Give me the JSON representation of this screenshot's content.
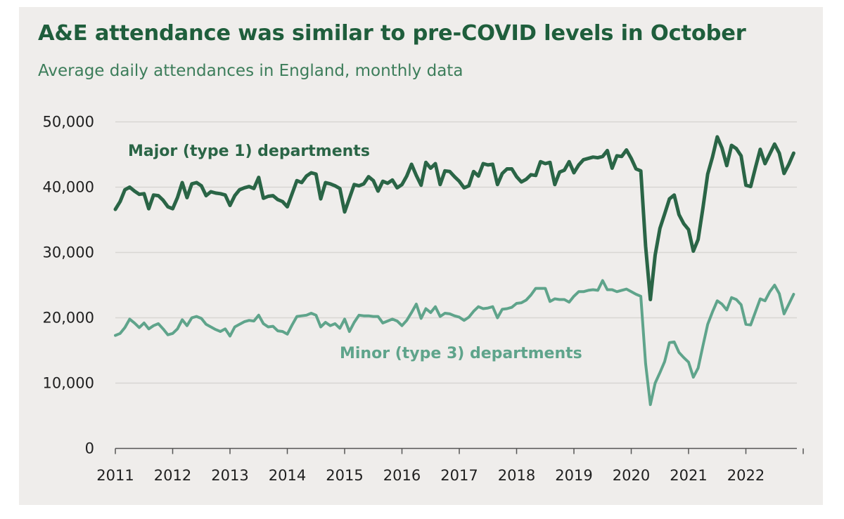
{
  "colors": {
    "background": "#efedeb",
    "title": "#1f5e3c",
    "subtitle": "#3c7d5a",
    "major": "#2a6546",
    "minor": "#5fa48b",
    "grid": "#d8d6d3",
    "axis": "#555555"
  },
  "chart_data": {
    "type": "line",
    "title": "A&E attendance was similar to pre-COVID levels in October",
    "subtitle": "Average daily attendances in England, monthly data",
    "xlabel": "",
    "ylabel": "",
    "ylim": [
      0,
      50000
    ],
    "yticks": [
      0,
      10000,
      20000,
      30000,
      40000,
      50000
    ],
    "ytick_labels": [
      "0",
      "10,000",
      "20,000",
      "30,000",
      "40,000",
      "50,000"
    ],
    "xtick_labels": [
      "2011",
      "2012",
      "2013",
      "2014",
      "2015",
      "2016",
      "2017",
      "2018",
      "2019",
      "2020",
      "2021",
      "2022"
    ],
    "x_start": "2011-01",
    "x_end": "2022-10",
    "grid": true,
    "series": [
      {
        "name": "Major (type 1) departments",
        "label": "Major (type 1) departments",
        "color": "#2a6546",
        "values": [
          36600,
          37800,
          39600,
          40000,
          39400,
          38900,
          39000,
          36700,
          38800,
          38700,
          38000,
          37000,
          36700,
          38400,
          40700,
          38400,
          40500,
          40700,
          40200,
          38700,
          39300,
          39100,
          39000,
          38800,
          37200,
          38700,
          39600,
          39900,
          40100,
          39800,
          41500,
          38300,
          38600,
          38700,
          38100,
          37800,
          37000,
          39000,
          41000,
          40700,
          41700,
          42200,
          42000,
          38200,
          40700,
          40500,
          40200,
          39800,
          36200,
          38300,
          40400,
          40200,
          40500,
          41600,
          41000,
          39400,
          40900,
          40600,
          41100,
          39900,
          40400,
          41700,
          43500,
          41800,
          40300,
          43800,
          42900,
          43600,
          40400,
          42500,
          42400,
          41600,
          40900,
          39900,
          40200,
          42400,
          41700,
          43600,
          43400,
          43500,
          40400,
          42100,
          42800,
          42800,
          41600,
          40800,
          41200,
          41900,
          41800,
          43900,
          43600,
          43800,
          40400,
          42300,
          42600,
          43900,
          42200,
          43400,
          44200,
          44400,
          44600,
          44500,
          44700,
          45600,
          42900,
          44800,
          44700,
          45700,
          44400,
          42800,
          42500,
          31000,
          22800,
          29600,
          33700,
          35900,
          38200,
          38800,
          35800,
          34400,
          33500,
          30200,
          32000,
          36800,
          42000,
          44600,
          47700,
          46000,
          43300,
          46400,
          45900,
          44800,
          40300,
          40100,
          43000,
          45800,
          43600,
          45100,
          46600,
          45200,
          42100,
          43500,
          45200
        ]
      },
      {
        "name": "Minor (type 3) departments",
        "label": "Minor (type 3) departments",
        "color": "#5fa48b",
        "values": [
          17300,
          17600,
          18500,
          19800,
          19200,
          18500,
          19200,
          18300,
          18800,
          19100,
          18300,
          17400,
          17600,
          18300,
          19700,
          18800,
          20000,
          20200,
          19900,
          19000,
          18600,
          18200,
          17900,
          18300,
          17200,
          18600,
          19000,
          19400,
          19600,
          19500,
          20400,
          19100,
          18600,
          18700,
          18000,
          17900,
          17500,
          18900,
          20200,
          20300,
          20400,
          20700,
          20400,
          18600,
          19300,
          18800,
          19100,
          18400,
          19800,
          17900,
          19300,
          20400,
          20300,
          20300,
          20200,
          20200,
          19200,
          19500,
          19800,
          19500,
          18800,
          19600,
          20800,
          22100,
          19900,
          21400,
          20800,
          21700,
          20200,
          20700,
          20600,
          20300,
          20100,
          19600,
          20100,
          21000,
          21700,
          21400,
          21500,
          21700,
          20000,
          21300,
          21400,
          21600,
          22200,
          22300,
          22700,
          23500,
          24500,
          24500,
          24500,
          22500,
          22900,
          22800,
          22800,
          22400,
          23300,
          24000,
          24000,
          24200,
          24300,
          24200,
          25700,
          24300,
          24300,
          24000,
          24200,
          24400,
          24000,
          23600,
          23300,
          13000,
          6700,
          10000,
          11600,
          13300,
          16200,
          16300,
          14700,
          13900,
          13200,
          10900,
          12300,
          15700,
          19000,
          20900,
          22600,
          22100,
          21200,
          23100,
          22800,
          22000,
          19000,
          18900,
          20900,
          22900,
          22600,
          24000,
          25000,
          23700,
          20600,
          22100,
          23600
        ]
      }
    ]
  }
}
